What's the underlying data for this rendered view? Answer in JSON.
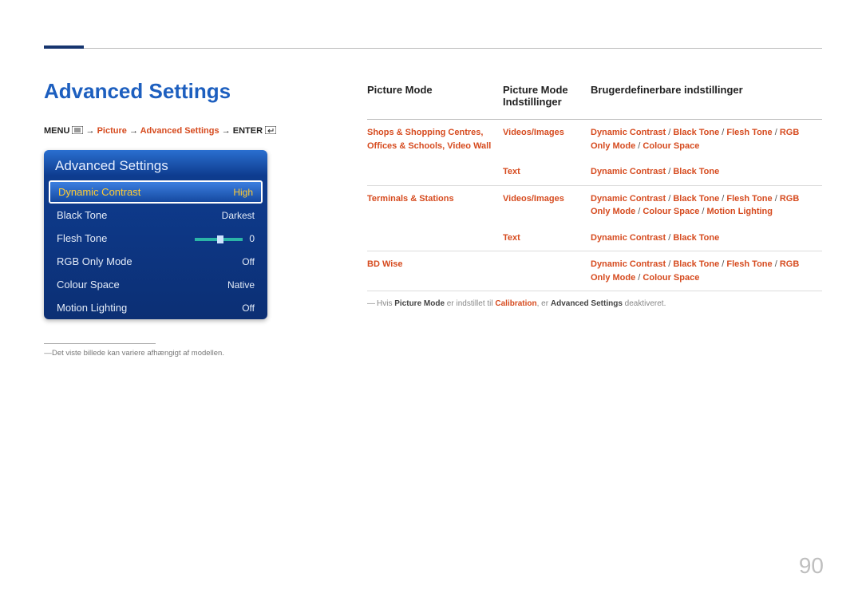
{
  "page_number": "90",
  "section_title": "Advanced Settings",
  "breadcrumb": {
    "menu": "MENU",
    "picture": "Picture",
    "advanced": "Advanced Settings",
    "enter": "ENTER",
    "arrow": "→"
  },
  "menu_panel": {
    "title": "Advanced Settings",
    "items": [
      {
        "label": "Dynamic Contrast",
        "value": "High",
        "selected": true,
        "slider": false
      },
      {
        "label": "Black Tone",
        "value": "Darkest",
        "selected": false,
        "slider": false
      },
      {
        "label": "Flesh Tone",
        "value": "0",
        "selected": false,
        "slider": true
      },
      {
        "label": "RGB Only Mode",
        "value": "Off",
        "selected": false,
        "slider": false
      },
      {
        "label": "Colour Space",
        "value": "Native",
        "selected": false,
        "slider": false
      },
      {
        "label": "Motion Lighting",
        "value": "Off",
        "selected": false,
        "slider": false
      }
    ]
  },
  "left_footnote": {
    "dash": "―",
    "text": "Det viste billede kan variere afhængigt af modellen."
  },
  "table": {
    "headers": {
      "c1": "Picture Mode",
      "c2": "Picture Mode Indstillinger",
      "c3": "Brugerdefinerbare indstillinger"
    },
    "rows": [
      {
        "c1": [
          "Shops & Shopping Centres",
          "Offices & Schools",
          "Video Wall"
        ],
        "c2": [
          "Videos/Images"
        ],
        "c3": [
          "Dynamic Contrast",
          "Black Tone",
          "Flesh Tone",
          "RGB Only Mode",
          "Colour Space"
        ]
      },
      {
        "c1": [],
        "c2": [
          "Text"
        ],
        "c3": [
          "Dynamic Contrast",
          "Black Tone"
        ]
      },
      {
        "c1": [
          "Terminals & Stations"
        ],
        "c2": [
          "Videos/Images"
        ],
        "c3": [
          "Dynamic Contrast",
          "Black Tone",
          "Flesh Tone",
          "RGB Only Mode",
          "Colour Space",
          "Motion Lighting"
        ]
      },
      {
        "c1": [],
        "c2": [
          "Text"
        ],
        "c3": [
          "Dynamic Contrast",
          "Black Tone"
        ]
      },
      {
        "c1": [
          "BD Wise"
        ],
        "c2": [],
        "c3": [
          "Dynamic Contrast",
          "Black Tone",
          "Flesh Tone",
          "RGB Only Mode",
          "Colour Space"
        ]
      }
    ],
    "footnote": {
      "dash": "―",
      "pre": "Hvis ",
      "hl1": "Picture Mode",
      "mid1": " er indstillet til ",
      "hl2": "Calibration",
      "mid2": ", er ",
      "b1": "Advanced Settings",
      "post": " deaktiveret."
    }
  }
}
